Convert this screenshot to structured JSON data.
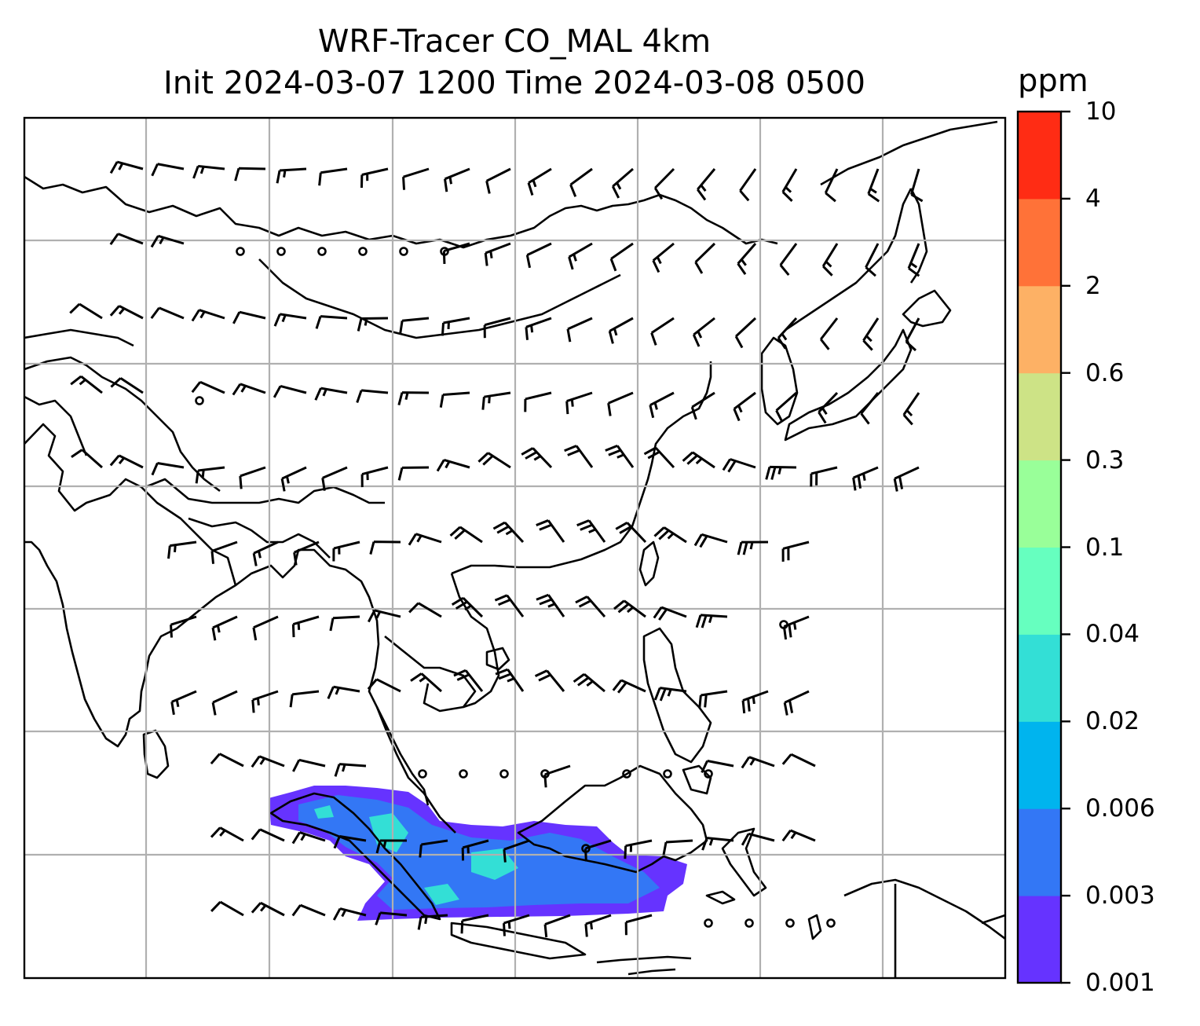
{
  "title": {
    "line1": "WRF-Tracer CO_MAL 4km",
    "line2": "Init 2024-03-07 1200 Time 2024-03-08 0500"
  },
  "colorbar": {
    "unit": "ppm",
    "levels": [
      "0.001",
      "0.003",
      "0.006",
      "0.02",
      "0.04",
      "0.1",
      "0.3",
      "0.6",
      "2",
      "4",
      "10"
    ],
    "colors": [
      "#6633ff",
      "#3377f5",
      "#00b4ee",
      "#33dfd6",
      "#66ffbf",
      "#99ff99",
      "#cde386",
      "#fdb165",
      "#ff7238",
      "#ff2c14"
    ]
  },
  "map": {
    "coastline_color": "#000000",
    "grid_color": "#b0b0b0",
    "tracer_plume_colors": [
      "#6633ff",
      "#3377f5",
      "#33dfd6"
    ]
  }
}
